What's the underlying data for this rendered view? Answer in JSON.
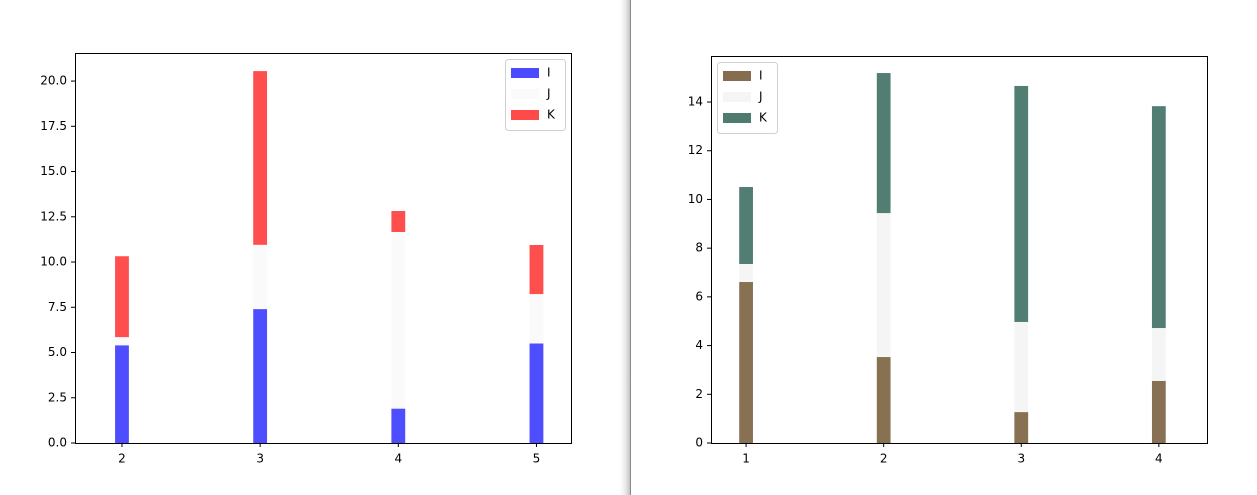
{
  "chart_data": [
    {
      "type": "bar",
      "stacked": true,
      "legend": "upper right",
      "x": [
        2,
        3,
        4,
        5
      ],
      "xlim": [
        1.66,
        5.25
      ],
      "xticks": [
        2,
        3,
        4,
        5
      ],
      "ylim": [
        0,
        21.55
      ],
      "yticks": [
        {
          "value": 0,
          "label": "0.0"
        },
        2.5,
        {
          "value": 5,
          "label": "5.0"
        },
        7.5,
        {
          "value": 10,
          "label": "10.0"
        },
        12.5,
        {
          "value": 15,
          "label": "15.0"
        },
        17.5,
        {
          "value": 20,
          "label": "20.0"
        }
      ],
      "series": [
        {
          "name": "I",
          "color": "#4a4aff",
          "values": [
            5.4,
            7.4,
            1.9,
            5.5
          ]
        },
        {
          "name": "J",
          "color": "#fafafa",
          "values": [
            0.45,
            3.55,
            9.76,
            2.73
          ]
        },
        {
          "name": "K",
          "color": "#ff4a4a",
          "values": [
            4.47,
            9.6,
            1.16,
            2.71
          ]
        }
      ]
    },
    {
      "type": "bar",
      "stacked": true,
      "legend": "upper left",
      "x": [
        1,
        2,
        3,
        4
      ],
      "xlim": [
        0.745,
        4.35
      ],
      "xticks": [
        1,
        2,
        3,
        4
      ],
      "ylim": [
        0,
        15.89
      ],
      "yticks": [
        0,
        2,
        4,
        6,
        8,
        10,
        12,
        14
      ],
      "series": [
        {
          "name": "I",
          "color": "#866d4f",
          "values": [
            6.61,
            3.53,
            1.27,
            2.55
          ]
        },
        {
          "name": "J",
          "color": "#f5f5f5",
          "values": [
            0.74,
            5.91,
            3.7,
            2.17
          ]
        },
        {
          "name": "K",
          "color": "#4f7a6f",
          "values": [
            3.16,
            5.75,
            9.69,
            9.11
          ]
        }
      ]
    }
  ]
}
